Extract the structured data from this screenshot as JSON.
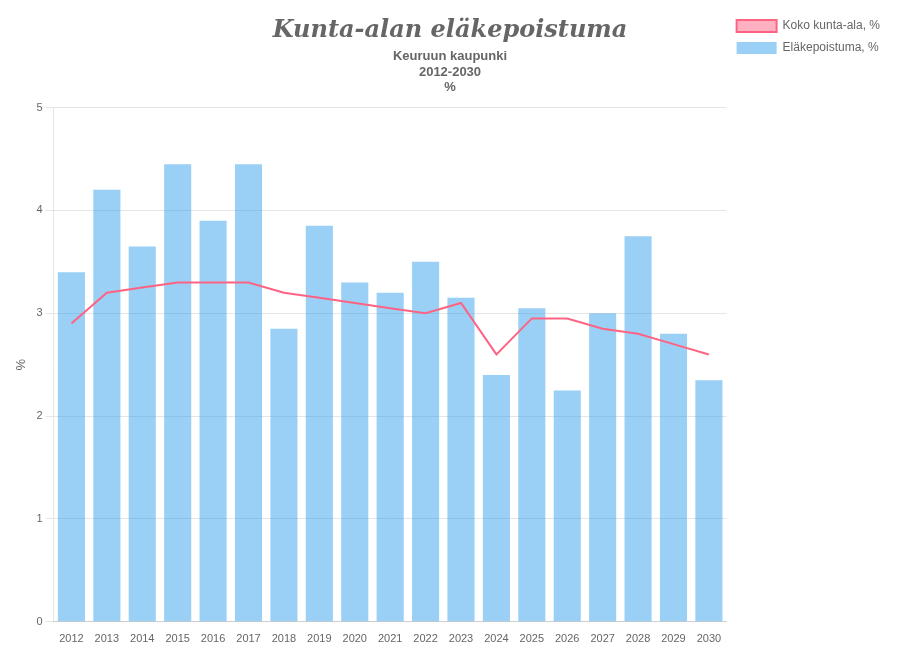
{
  "chart_data": {
    "type": "bar",
    "title": "Kunta-alan eläkepoistuma",
    "subtitle": [
      "Keuruun kaupunki",
      "2012-2030",
      "%"
    ],
    "ylabel": "%",
    "categories": [
      "2012",
      "2013",
      "2014",
      "2015",
      "2016",
      "2017",
      "2018",
      "2019",
      "2020",
      "2021",
      "2022",
      "2023",
      "2024",
      "2025",
      "2026",
      "2027",
      "2028",
      "2029",
      "2030"
    ],
    "series": [
      {
        "name": "Eläkepoistuma, %",
        "type": "bar",
        "values": [
          3.4,
          4.2,
          3.65,
          4.45,
          3.9,
          4.45,
          2.85,
          3.85,
          3.3,
          3.2,
          3.5,
          3.15,
          2.4,
          3.05,
          2.25,
          3.0,
          3.75,
          2.8,
          2.35
        ]
      },
      {
        "name": "Koko kunta-ala, %",
        "type": "line",
        "values": [
          2.9,
          3.2,
          3.25,
          3.3,
          3.3,
          3.3,
          3.2,
          3.15,
          3.1,
          3.05,
          3.0,
          3.1,
          2.6,
          2.95,
          2.95,
          2.85,
          2.8,
          2.7,
          2.6
        ]
      }
    ],
    "ylim": [
      0,
      5
    ],
    "yticks": [
      0,
      1,
      2,
      3,
      4,
      5
    ],
    "grid": true,
    "legend": "right"
  }
}
